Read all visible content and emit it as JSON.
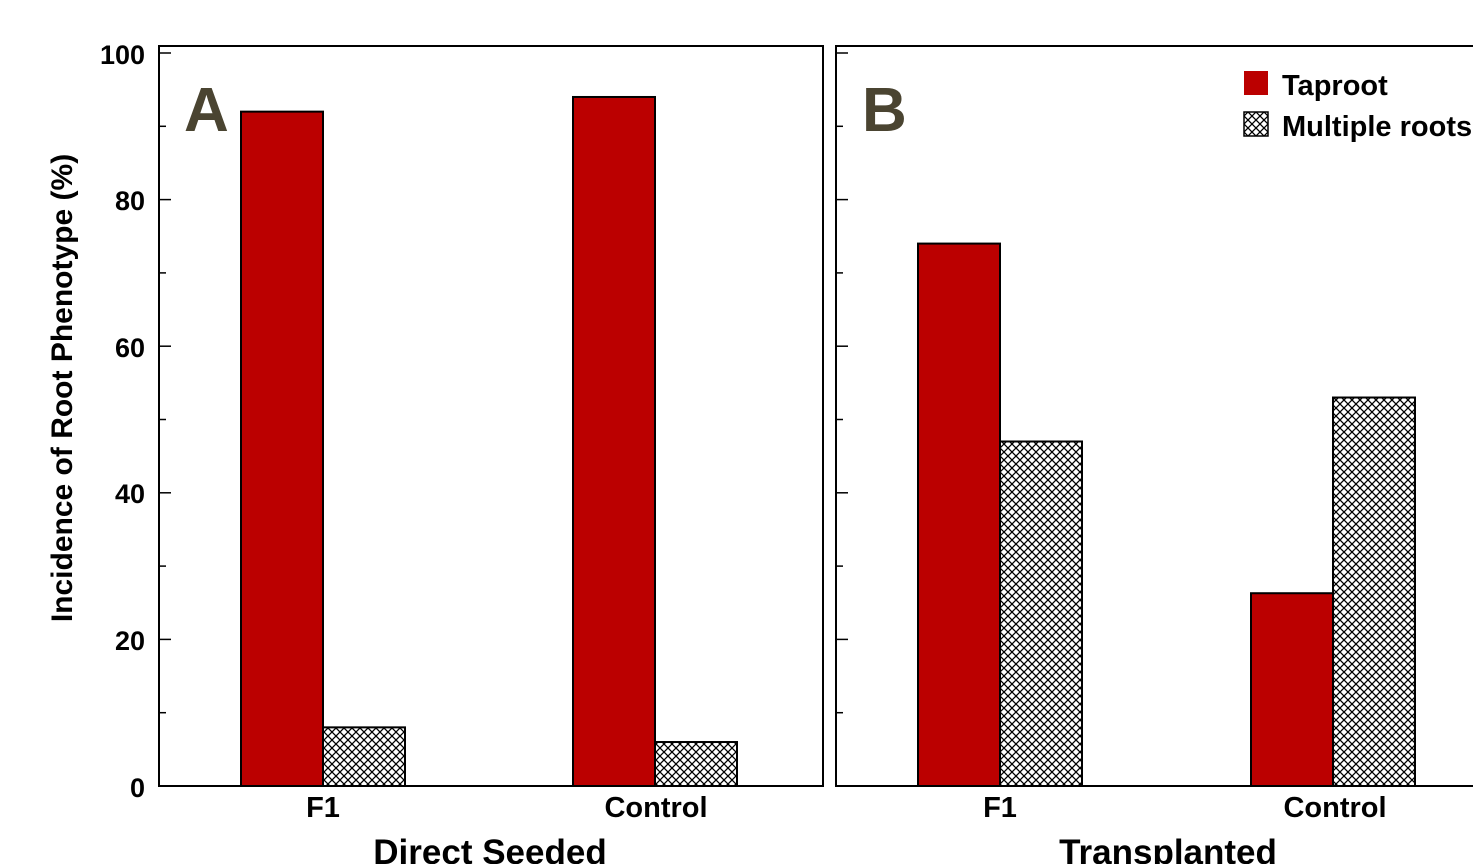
{
  "chart_data": [
    {
      "panel": "A",
      "type": "bar",
      "group_label": "Direct Seeded",
      "ylabel": "Incidence of Root Phenotype (%)",
      "ylim": [
        0,
        100
      ],
      "yticks": [
        "0",
        "20",
        "40",
        "60",
        "80",
        "100"
      ],
      "categories": [
        "F1",
        "Control"
      ],
      "series": [
        {
          "name": "Taproot",
          "values": [
            92,
            94
          ],
          "color": "#bb0000",
          "pattern": "solid"
        },
        {
          "name": "Multiple roots",
          "values": [
            8,
            6
          ],
          "color": "#000000",
          "pattern": "crosshatch"
        }
      ]
    },
    {
      "panel": "B",
      "type": "bar",
      "group_label": "Transplanted",
      "ylim": [
        0,
        100
      ],
      "categories": [
        "F1",
        "Control"
      ],
      "series": [
        {
          "name": "Taproot",
          "values": [
            74,
            26.3
          ],
          "color": "#bb0000",
          "pattern": "solid"
        },
        {
          "name": "Multiple roots",
          "values": [
            47,
            53
          ],
          "color": "#000000",
          "pattern": "crosshatch"
        }
      ]
    }
  ],
  "legend": {
    "items": [
      {
        "label": "Taproot",
        "swatch": "solid"
      },
      {
        "label": "Multiple roots",
        "swatch": "crosshatch"
      }
    ]
  }
}
